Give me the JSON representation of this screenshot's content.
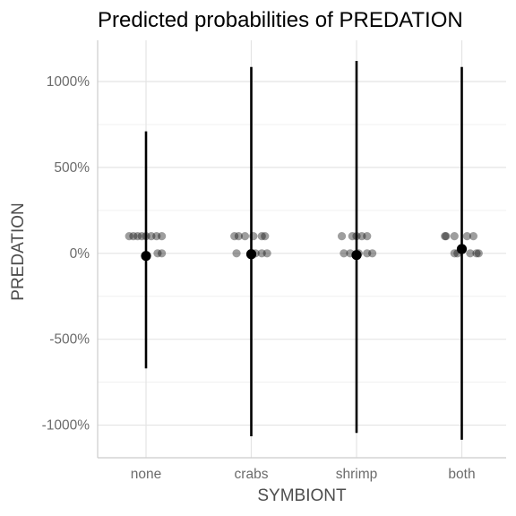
{
  "chart_data": {
    "type": "scatter",
    "title": "Predicted probabilities of PREDATION",
    "xlabel": "SYMBIONT",
    "ylabel": "PREDATION",
    "categories": [
      "none",
      "crabs",
      "shrimp",
      "both"
    ],
    "y_tick_values": [
      1000,
      500,
      0,
      -500,
      -1000
    ],
    "y_tick_labels": [
      "1000%",
      "500%",
      "0%",
      "-500%",
      "-1000%"
    ],
    "ylim": [
      -1190,
      1240
    ],
    "grid": true,
    "legend": "none",
    "series": [
      {
        "category": "none",
        "predicted": -15,
        "ci_low": -670,
        "ci_high": 710,
        "observations": [
          {
            "x_offset": -0.16,
            "y": 100
          },
          {
            "x_offset": -0.12,
            "y": 100
          },
          {
            "x_offset": -0.08,
            "y": 100
          },
          {
            "x_offset": -0.04,
            "y": 100
          },
          {
            "x_offset": 0.0,
            "y": 100
          },
          {
            "x_offset": 0.05,
            "y": 100
          },
          {
            "x_offset": 0.1,
            "y": 100
          },
          {
            "x_offset": 0.15,
            "y": 100
          },
          {
            "x_offset": 0.11,
            "y": 0
          },
          {
            "x_offset": 0.15,
            "y": 0
          }
        ]
      },
      {
        "category": "crabs",
        "predicted": -5,
        "ci_low": -1065,
        "ci_high": 1085,
        "observations": [
          {
            "x_offset": -0.16,
            "y": 100
          },
          {
            "x_offset": -0.12,
            "y": 100
          },
          {
            "x_offset": -0.06,
            "y": 100
          },
          {
            "x_offset": 0.02,
            "y": 100
          },
          {
            "x_offset": 0.1,
            "y": 100
          },
          {
            "x_offset": 0.13,
            "y": 100
          },
          {
            "x_offset": -0.14,
            "y": 0
          },
          {
            "x_offset": 0.04,
            "y": 0
          },
          {
            "x_offset": 0.1,
            "y": 0
          },
          {
            "x_offset": 0.15,
            "y": 0
          }
        ]
      },
      {
        "category": "shrimp",
        "predicted": -10,
        "ci_low": -1045,
        "ci_high": 1120,
        "observations": [
          {
            "x_offset": -0.14,
            "y": 100
          },
          {
            "x_offset": -0.04,
            "y": 100
          },
          {
            "x_offset": 0.0,
            "y": 100
          },
          {
            "x_offset": 0.05,
            "y": 100
          },
          {
            "x_offset": 0.1,
            "y": 100
          },
          {
            "x_offset": -0.12,
            "y": 0
          },
          {
            "x_offset": -0.06,
            "y": 0
          },
          {
            "x_offset": 0.02,
            "y": 0
          },
          {
            "x_offset": 0.1,
            "y": 0
          },
          {
            "x_offset": 0.15,
            "y": 0
          }
        ]
      },
      {
        "category": "both",
        "predicted": 25,
        "ci_low": -1085,
        "ci_high": 1085,
        "observations": [
          {
            "x_offset": -0.16,
            "y": 100
          },
          {
            "x_offset": -0.15,
            "y": 100
          },
          {
            "x_offset": -0.07,
            "y": 100
          },
          {
            "x_offset": 0.05,
            "y": 100
          },
          {
            "x_offset": 0.11,
            "y": 100
          },
          {
            "x_offset": -0.07,
            "y": 0
          },
          {
            "x_offset": -0.04,
            "y": 0
          },
          {
            "x_offset": 0.08,
            "y": 0
          },
          {
            "x_offset": 0.14,
            "y": 0
          },
          {
            "x_offset": 0.16,
            "y": 0
          }
        ]
      }
    ]
  }
}
